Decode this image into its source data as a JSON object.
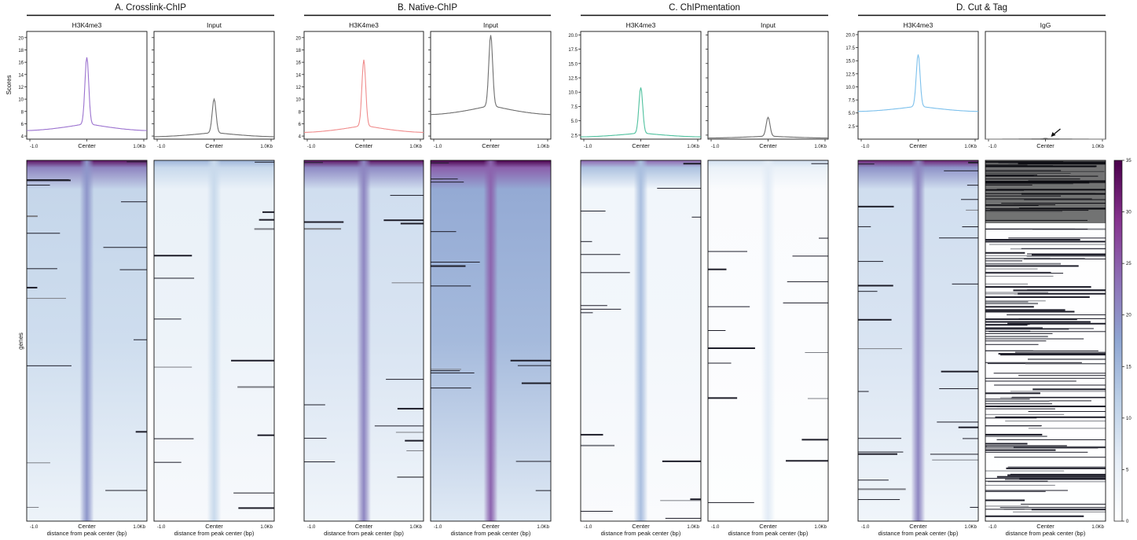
{
  "figure": {
    "y_axis_label_profile": "Scores",
    "y_axis_label_heatmap": "genes",
    "x_tick_labels": [
      "-1.0",
      "Center",
      "1.0Kb"
    ],
    "x_axis_label_heatmap": "distance from peak center (bp)"
  },
  "colorbar": {
    "ticks": [
      0,
      5,
      10,
      15,
      20,
      25,
      30,
      35
    ],
    "colors": [
      "#ffffff",
      "#e6eef7",
      "#bcd0e7",
      "#8fa6d2",
      "#8d70b6",
      "#86338e",
      "#4a004b"
    ],
    "range": [
      0,
      35
    ]
  },
  "chart_data": [
    {
      "type": "line",
      "group": "A. Crosslink-ChIP",
      "title": "H3K4me3",
      "ylabel": "Scores",
      "x": [
        "-1.0",
        "Center",
        "1.0Kb"
      ],
      "ylim": [
        3.5,
        21
      ],
      "yticks": [
        4,
        6,
        8,
        10,
        12,
        14,
        16,
        18,
        20
      ],
      "series": [
        {
          "color": "#9b72cf",
          "baseline_edge": 4.9,
          "shoulder": 5.9,
          "peak": 16.8
        }
      ]
    },
    {
      "type": "line",
      "group": "A. Crosslink-ChIP",
      "title": "Input",
      "x": [
        "-1.0",
        "Center",
        "1.0Kb"
      ],
      "ylim": [
        3.5,
        21
      ],
      "yticks": [
        4,
        6,
        8,
        10,
        12,
        14,
        16,
        18,
        20
      ],
      "series": [
        {
          "color": "#6e6e6e",
          "baseline_edge": 3.9,
          "shoulder": 4.5,
          "peak": 10.0
        }
      ]
    },
    {
      "type": "line",
      "group": "B. Native-ChIP",
      "title": "H3K4me3",
      "x": [
        "-1.0",
        "Center",
        "1.0Kb"
      ],
      "ylim": [
        3.5,
        21
      ],
      "yticks": [
        4,
        6,
        8,
        10,
        12,
        14,
        16,
        18,
        20
      ],
      "series": [
        {
          "color": "#f08c8c",
          "baseline_edge": 4.6,
          "shoulder": 5.6,
          "peak": 16.4
        }
      ]
    },
    {
      "type": "line",
      "group": "B. Native-ChIP",
      "title": "Input",
      "x": [
        "-1.0",
        "Center",
        "1.0Kb"
      ],
      "ylim": [
        3.5,
        21
      ],
      "yticks": [
        4,
        6,
        8,
        10,
        12,
        14,
        16,
        18,
        20
      ],
      "series": [
        {
          "color": "#6e6e6e",
          "baseline_edge": 7.5,
          "shoulder": 8.8,
          "peak": 20.4
        }
      ]
    },
    {
      "type": "line",
      "group": "C. ChIPmentation",
      "title": "H3K4me3",
      "x": [
        "-1.0",
        "Center",
        "1.0Kb"
      ],
      "ylim": [
        1.8,
        20.6
      ],
      "yticks": [
        2.5,
        5.0,
        7.5,
        10.0,
        12.5,
        15.0,
        17.5,
        20.0
      ],
      "series": [
        {
          "color": "#4fc19e",
          "baseline_edge": 2.2,
          "shoulder": 2.8,
          "peak": 10.8
        }
      ]
    },
    {
      "type": "line",
      "group": "C. ChIPmentation",
      "title": "Input",
      "x": [
        "-1.0",
        "Center",
        "1.0Kb"
      ],
      "ylim": [
        1.8,
        20.6
      ],
      "yticks": [
        2.5,
        5.0,
        7.5,
        10.0,
        12.5,
        15.0,
        17.5,
        20.0
      ],
      "series": [
        {
          "color": "#6e6e6e",
          "baseline_edge": 2.0,
          "shoulder": 2.3,
          "peak": 5.6
        }
      ]
    },
    {
      "type": "line",
      "group": "D. Cut & Tag",
      "title": "H3K4me3",
      "x": [
        "-1.0",
        "Center",
        "1.0Kb"
      ],
      "ylim": [
        0,
        20.6
      ],
      "yticks": [
        2.5,
        5.0,
        7.5,
        10.0,
        12.5,
        15.0,
        17.5,
        20.0
      ],
      "series": [
        {
          "color": "#7cc0ec",
          "baseline_edge": 5.3,
          "shoulder": 6.2,
          "peak": 16.2
        }
      ]
    },
    {
      "type": "line",
      "group": "D. Cut & Tag",
      "title": "IgG",
      "x": [
        "-1.0",
        "Center",
        "1.0Kb"
      ],
      "ylim": [
        0,
        20.6
      ],
      "yticks": [],
      "series": [
        {
          "color": "#6e6e6e",
          "baseline_edge": 0.0,
          "shoulder": 0.05,
          "peak": 0.15
        }
      ],
      "annotation": "arrow pointing to flat IgG profile"
    }
  ],
  "heatmaps": [
    {
      "group": "A. Crosslink-ChIP",
      "title": "H3K4me3",
      "bg_intensity": 0.26,
      "top_intensity": 0.95,
      "center_intensity": 0.55,
      "missing_density": 0.13
    },
    {
      "group": "A. Crosslink-ChIP",
      "title": "Input",
      "bg_intensity": 0.12,
      "top_intensity": 0.45,
      "center_intensity": 0.28,
      "missing_density": 0.11
    },
    {
      "group": "B. Native-ChIP",
      "title": "H3K4me3",
      "bg_intensity": 0.22,
      "top_intensity": 0.95,
      "center_intensity": 0.6,
      "missing_density": 0.12
    },
    {
      "group": "B. Native-ChIP",
      "title": "Input",
      "bg_intensity": 0.42,
      "top_intensity": 1.0,
      "center_intensity": 0.7,
      "missing_density": 0.12
    },
    {
      "group": "C. ChIPmentation",
      "title": "H3K4me3",
      "bg_intensity": 0.08,
      "top_intensity": 0.7,
      "center_intensity": 0.4,
      "missing_density": 0.12
    },
    {
      "group": "C. ChIPmentation",
      "title": "Input",
      "bg_intensity": 0.03,
      "top_intensity": 0.25,
      "center_intensity": 0.18,
      "missing_density": 0.12
    },
    {
      "group": "D. Cut & Tag",
      "title": "H3K4me3",
      "bg_intensity": 0.22,
      "top_intensity": 0.9,
      "center_intensity": 0.6,
      "missing_density": 0.22
    },
    {
      "group": "D. Cut & Tag",
      "title": "IgG",
      "bg_intensity": 0.01,
      "top_intensity": 0.02,
      "center_intensity": 0.0,
      "missing_density": 0.55
    }
  ]
}
